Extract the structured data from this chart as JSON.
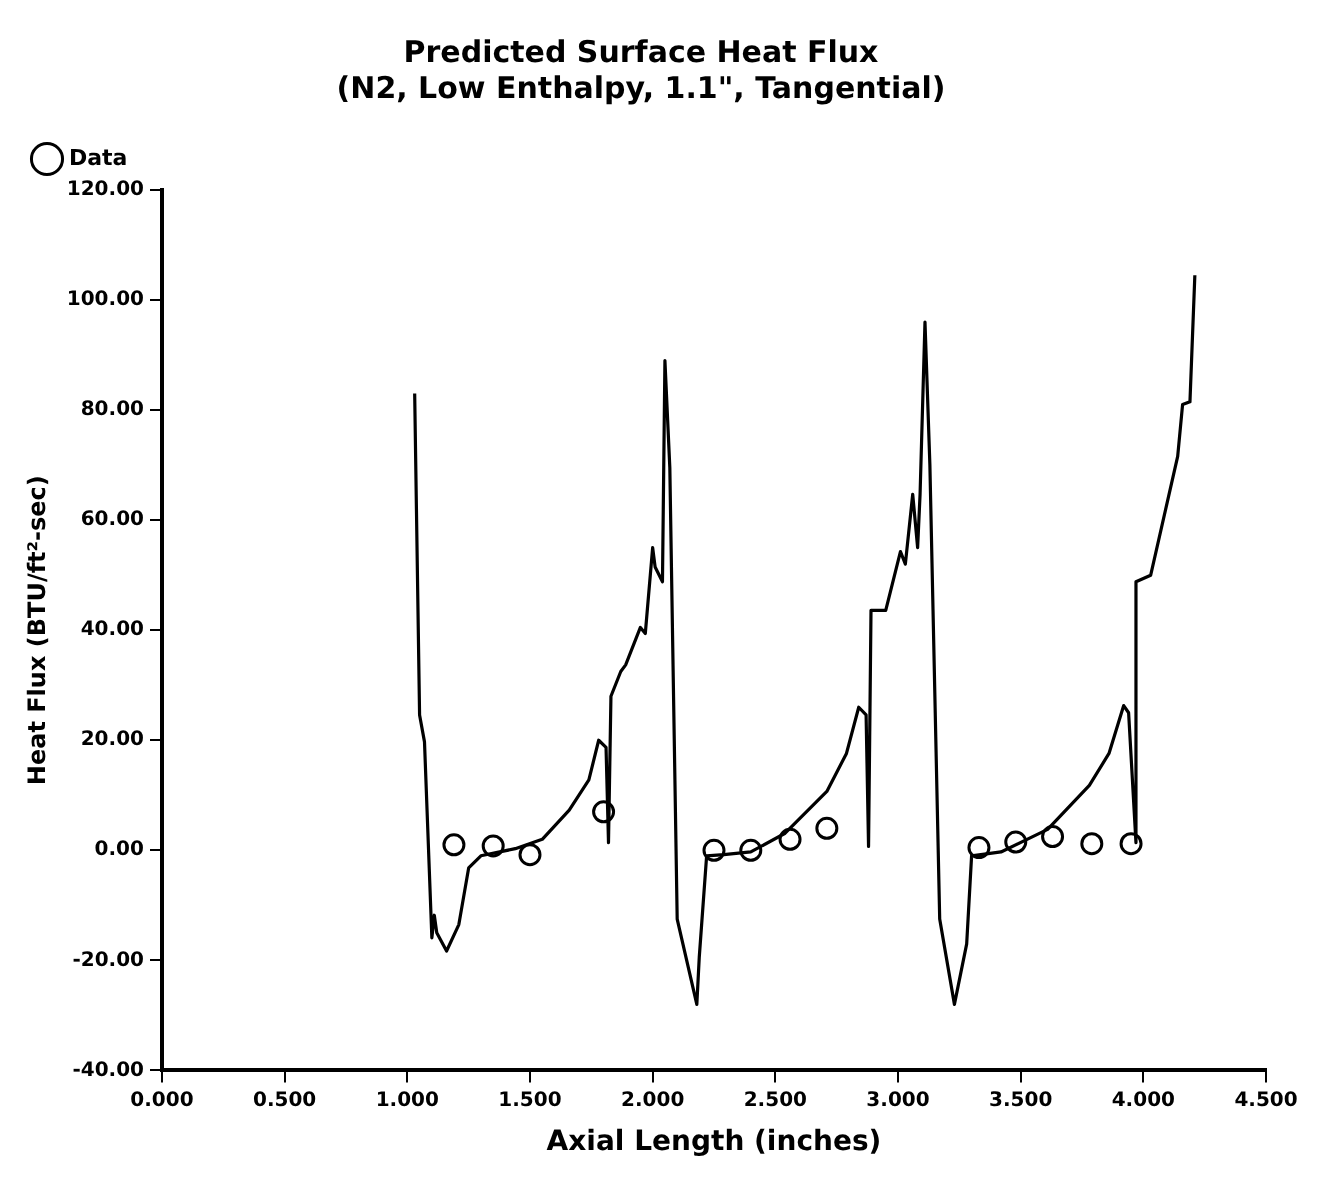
{
  "chart_data": {
    "type": "line",
    "title": "Predicted Surface Heat Flux\n(N2, Low Enthalpy, 1.1\", Tangential)",
    "xlabel": "Axial Length (inches)",
    "ylabel": "Heat Flux (BTU/ft²-sec)",
    "xlim": [
      0,
      4.5
    ],
    "xticks": [
      {
        "value": 0,
        "label": "0.000"
      },
      {
        "value": 0.5,
        "label": "0.500"
      },
      {
        "value": 1,
        "label": "1.000"
      },
      {
        "value": 1.5,
        "label": "1.500"
      },
      {
        "value": 2,
        "label": "2.000"
      },
      {
        "value": 2.5,
        "label": "2.500"
      },
      {
        "value": 3,
        "label": "3.000"
      },
      {
        "value": 3.5,
        "label": "3.500"
      },
      {
        "value": 4,
        "label": "4.000"
      },
      {
        "value": 4.5,
        "label": "4.500"
      }
    ],
    "ylim": [
      -40,
      120
    ],
    "yticks": [
      {
        "value": -40,
        "label": "-40.00"
      },
      {
        "value": -20,
        "label": "-20.00"
      },
      {
        "value": 0,
        "label": "0.00"
      },
      {
        "value": 20,
        "label": "20.00"
      },
      {
        "value": 40,
        "label": "40.00"
      },
      {
        "value": 60,
        "label": "60.00"
      },
      {
        "value": 80,
        "label": "80.00"
      },
      {
        "value": 100,
        "label": "100.00"
      },
      {
        "value": 120,
        "label": "120.00"
      }
    ],
    "legend": "top left",
    "series": [
      {
        "name": "Data",
        "type": "scatter",
        "marker": "circle",
        "color": "#000000",
        "x": [
          1.19,
          1.35,
          1.5,
          1.8,
          2.25,
          2.4,
          2.56,
          2.71,
          3.33,
          3.48,
          3.63,
          3.79,
          3.95
        ],
        "values": [
          1,
          0.8,
          -0.8,
          7,
          0,
          0,
          2,
          4,
          0.5,
          1.5,
          2.5,
          1.2,
          1.2
        ]
      },
      {
        "type": "line",
        "marker": "none",
        "line_style": "solid",
        "color": "#000000",
        "x": [
          1.03,
          1.05,
          1.07,
          1.1,
          1.11,
          1.12,
          1.16,
          1.21,
          1.25,
          1.3,
          1.44,
          1.55,
          1.66,
          1.74,
          1.78,
          1.81,
          1.82,
          1.83,
          1.87,
          1.89,
          1.95,
          1.97,
          2,
          2.01,
          2.04,
          2.05,
          2.07,
          2.1,
          2.18,
          2.19,
          2.22,
          2.29,
          2.4,
          2.54,
          2.71,
          2.79,
          2.84,
          2.87,
          2.88,
          2.89,
          2.95,
          3.01,
          3.03,
          3.06,
          3.08,
          3.09,
          3.11,
          3.13,
          3.17,
          3.23,
          3.28,
          3.3,
          3.42,
          3.61,
          3.78,
          3.86,
          3.92,
          3.94,
          3.97,
          3.97,
          4.03,
          4.14,
          4.16,
          4.19,
          4.21
        ],
        "values": [
          83,
          24.6,
          19.7,
          -15.9,
          -11.8,
          -15,
          -18.3,
          -13.5,
          -3.2,
          -1,
          0.3,
          2,
          7.3,
          12.8,
          20,
          18.7,
          1.4,
          28,
          32.5,
          33.7,
          40.5,
          39.4,
          55,
          51.5,
          48.8,
          89,
          69.5,
          -12.5,
          -28,
          -19.4,
          -1,
          -0.8,
          -0.3,
          3.1,
          10.7,
          17.6,
          26,
          24.6,
          0.7,
          43.6,
          43.6,
          54.3,
          52,
          64.7,
          55,
          64.7,
          96,
          70,
          -12.5,
          -28,
          -17,
          -1,
          -0.3,
          3.8,
          11.8,
          17.6,
          26.3,
          25,
          1.4,
          48.8,
          50,
          71.6,
          81,
          81.5,
          104.5
        ]
      }
    ]
  }
}
